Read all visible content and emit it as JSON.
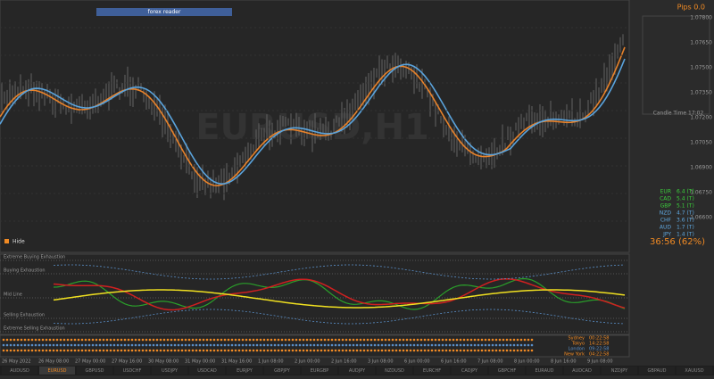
{
  "window": {
    "panel_title": "forex reader",
    "watermark": "EURUSD,H1",
    "hide": "Hide"
  },
  "info_panel": {
    "pips": "Pips 0.0",
    "candle_time": "Candle Time 17:02",
    "countdown": "36:56 (62%)"
  },
  "strength": [
    {
      "currency": "EUR",
      "value": "6.4 (T)",
      "color": "#3cd13c"
    },
    {
      "currency": "CAD",
      "value": "5.4 (T)",
      "color": "#3cd13c"
    },
    {
      "currency": "GBP",
      "value": "5.1 (T)",
      "color": "#3cd13c"
    },
    {
      "currency": "NZD",
      "value": "4.7 (T)",
      "color": "#5fa8e0"
    },
    {
      "currency": "CHF",
      "value": "3.6 (T)",
      "color": "#5fa8e0"
    },
    {
      "currency": "AUD",
      "value": "1.7 (T)",
      "color": "#5fa8e0"
    },
    {
      "currency": "JPY",
      "value": "1.4 (T)",
      "color": "#5fa8e0"
    }
  ],
  "price_scale": [
    "1.07800",
    "1.07650",
    "1.07500",
    "1.07350",
    "1.07200",
    "1.07050",
    "1.06900",
    "1.06750",
    "1.06600"
  ],
  "oscillator": {
    "levels": [
      "Extreme Buying Exhaustion",
      "Buying Exhaustion",
      "Mid Line",
      "Selling Exhaustion",
      "Extreme Selling Exhaustion"
    ]
  },
  "sessions": [
    {
      "name": "Sydney",
      "time": "00:22:58"
    },
    {
      "name": "Tokyo",
      "time": "14:22:58"
    },
    {
      "name": "London",
      "time": "09:22:58"
    },
    {
      "name": "New York",
      "time": "04:22:58"
    }
  ],
  "dates": [
    "26 May 2022",
    "26 May 08:00",
    "27 May 00:00",
    "27 May 16:00",
    "30 May 08:00",
    "31 May 00:00",
    "31 May 16:00",
    "1 Jun 08:00",
    "2 Jun 00:00",
    "2 Jun 16:00",
    "3 Jun 08:00",
    "6 Jun 00:00",
    "6 Jun 16:00",
    "7 Jun 08:00",
    "8 Jun 00:00",
    "8 Jun 16:00",
    "9 Jun 08:00"
  ],
  "tabs": [
    "AUDUSD",
    "EURUSD",
    "GBPUSD",
    "USDCHF",
    "USDJPY",
    "USDCAD",
    "EURJPY",
    "GBPJPY",
    "EURGBP",
    "AUDJPY",
    "NZDUSD",
    "EURCHF",
    "CADJPY",
    "GBPCHF",
    "EURAUD",
    "AUDCAD",
    "NZDJPY",
    "GBPAUD",
    "XAUUSD"
  ]
}
